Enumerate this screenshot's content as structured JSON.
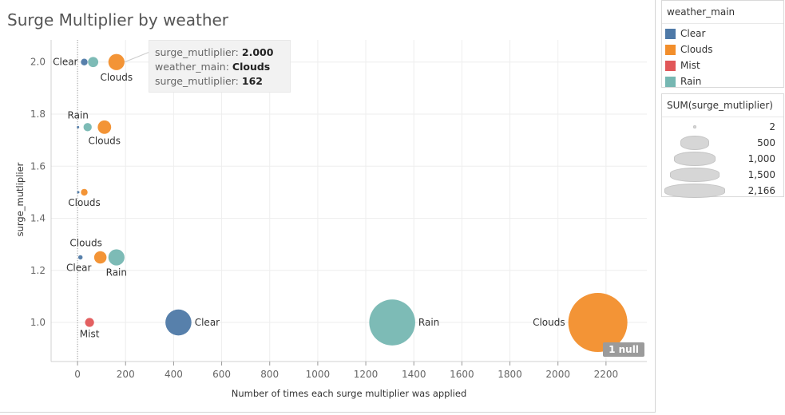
{
  "chart_data": {
    "type": "scatter",
    "title": "Surge Multiplier by weather",
    "xlabel": "Number of times each surge multiplier was applied",
    "ylabel": "surge_mutliplier",
    "xlim": [
      -110,
      2370
    ],
    "ylim": [
      0.85,
      2.085
    ],
    "x_ticks": [
      0,
      200,
      400,
      600,
      800,
      1000,
      1200,
      1400,
      1600,
      1800,
      2000,
      2200
    ],
    "y_ticks": [
      "1.0",
      "1.2",
      "1.4",
      "1.6",
      "1.8",
      "2.0"
    ],
    "grid": true,
    "colors": {
      "Clear": "#4e79a7",
      "Clouds": "#f28e2b",
      "Mist": "#e15759",
      "Rain": "#76b7b2"
    },
    "points": [
      {
        "series": "Clear",
        "x": 28,
        "y": 2.0,
        "label": "Clear"
      },
      {
        "series": "Rain",
        "x": 65,
        "y": 2.0,
        "label": ""
      },
      {
        "series": "Clouds",
        "x": 162,
        "y": 2.0,
        "label": "Clouds"
      },
      {
        "series": "Clear",
        "x": 2,
        "y": 1.75,
        "label": ""
      },
      {
        "series": "Rain",
        "x": 42,
        "y": 1.75,
        "label": "Rain"
      },
      {
        "series": "Clouds",
        "x": 112,
        "y": 1.75,
        "label": "Clouds"
      },
      {
        "series": "Clear",
        "x": 3,
        "y": 1.5,
        "label": ""
      },
      {
        "series": "Clouds",
        "x": 28,
        "y": 1.5,
        "label": "Clouds"
      },
      {
        "series": "Clear",
        "x": 12,
        "y": 1.25,
        "label": "Clear"
      },
      {
        "series": "Clouds",
        "x": 95,
        "y": 1.25,
        "label": "Clouds"
      },
      {
        "series": "Rain",
        "x": 162,
        "y": 1.25,
        "label": "Rain"
      },
      {
        "series": "Mist",
        "x": 50,
        "y": 1.0,
        "label": "Mist"
      },
      {
        "series": "Clear",
        "x": 420,
        "y": 1.0,
        "label": "Clear"
      },
      {
        "series": "Rain",
        "x": 1310,
        "y": 1.0,
        "label": "Rain"
      },
      {
        "series": "Clouds",
        "x": 2166,
        "y": 1.0,
        "label": "Clouds"
      }
    ],
    "tooltip": {
      "lines": [
        {
          "key": "surge_mutliplier:",
          "value": "2.000"
        },
        {
          "key": "weather_main:",
          "value": "Clouds"
        },
        {
          "key": "surge_mutliplier:",
          "value": "162"
        }
      ]
    },
    "null_badge": "1 null",
    "color_legend": {
      "title": "weather_main",
      "items": [
        {
          "name": "Clear",
          "color": "#4e79a7"
        },
        {
          "name": "Clouds",
          "color": "#f28e2b"
        },
        {
          "name": "Mist",
          "color": "#e15759"
        },
        {
          "name": "Rain",
          "color": "#76b7b2"
        }
      ]
    },
    "size_legend": {
      "title": "SUM(surge_mutliplier)",
      "items": [
        {
          "label": "2",
          "value": 2
        },
        {
          "label": "500",
          "value": 500
        },
        {
          "label": "1,000",
          "value": 1000
        },
        {
          "label": "1,500",
          "value": 1500
        },
        {
          "label": "2,166",
          "value": 2166
        }
      ]
    }
  }
}
